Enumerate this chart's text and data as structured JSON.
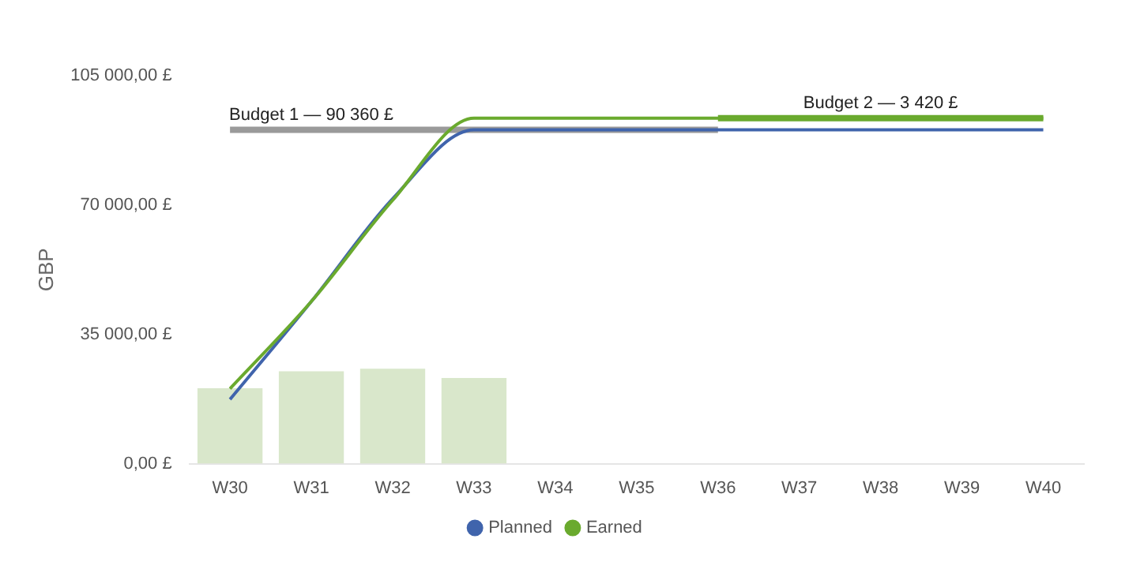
{
  "chart_data": {
    "type": "line",
    "ylabel": "GBP",
    "categories": [
      "W30",
      "W31",
      "W32",
      "W33",
      "W34",
      "W35",
      "W36",
      "W37",
      "W38",
      "W39",
      "W40"
    ],
    "series": [
      {
        "type": "bar",
        "color": "#d9e7cb",
        "values": [
          20400,
          25000,
          25700,
          23200,
          null,
          null,
          null,
          null,
          null,
          null,
          null
        ]
      },
      {
        "color": "#9a9a9a",
        "values": [
          90360,
          90360,
          90360,
          90360,
          90360,
          90360,
          90360,
          null,
          null,
          null,
          null
        ]
      },
      {
        "color": "#6aaa2e",
        "values": [
          null,
          null,
          null,
          null,
          null,
          null,
          93500,
          93500,
          93500,
          93500,
          93500
        ]
      },
      {
        "name": "Planned",
        "color": "#4064ac",
        "values": [
          17400,
          43900,
          71700,
          90360,
          90360,
          90360,
          90360,
          90360,
          90360,
          90360,
          90360
        ]
      },
      {
        "name": "Earned",
        "color": "#6aaa2e",
        "values": [
          20300,
          43900,
          71300,
          93500,
          93500,
          93500,
          93500,
          93500,
          93500,
          93500,
          93500
        ]
      }
    ],
    "ylim": [
      0,
      105000
    ],
    "yticks": [
      {
        "value": 0,
        "label": "0,00 £"
      },
      {
        "value": 35000,
        "label": "35 000,00 £"
      },
      {
        "value": 70000,
        "label": "70 000,00 £"
      },
      {
        "value": 105000,
        "label": "105 000,00 £"
      }
    ],
    "annotations": [
      {
        "text": "Budget 1 — 90 360 £",
        "x": "W31",
        "y": 90360
      },
      {
        "text": "Budget 2 — 3 420 £",
        "x": "W38",
        "y": 93500
      }
    ],
    "grid": false,
    "legend": "bottom"
  }
}
